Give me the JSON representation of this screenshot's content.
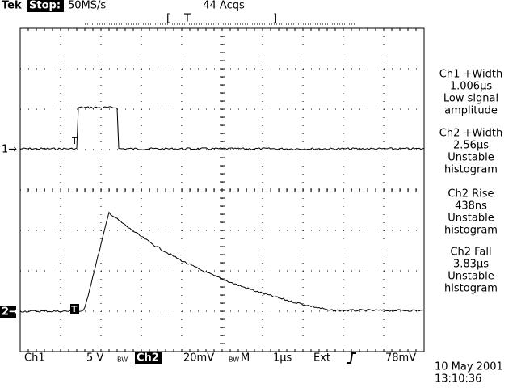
{
  "header": {
    "brand": "Tek",
    "state": "Stop:",
    "sample_rate": "50MS/s",
    "acquisitions": "44 Acqs",
    "trigger_position": "T"
  },
  "channel_markers": [
    "1→",
    "2→"
  ],
  "trace_markers": [
    "T",
    "T"
  ],
  "measurements": [
    {
      "lines": [
        "Ch1 +Width",
        "1.006µs",
        "Low signal",
        "amplitude"
      ]
    },
    {
      "lines": [
        "Ch2 +Width",
        "2.56µs",
        "Unstable",
        "histogram"
      ]
    },
    {
      "lines": [
        "Ch2 Rise",
        "438ns",
        "Unstable",
        "histogram"
      ]
    },
    {
      "lines": [
        "Ch2 Fall",
        "3.83µs",
        "Unstable",
        "histogram"
      ]
    }
  ],
  "footer": {
    "ch1": "Ch1",
    "ch1_scale": "5 V",
    "bw1": "BW",
    "ch2": "Ch2",
    "ch2_scale": "20mV",
    "bw2": "BW",
    "timebase_label": "M",
    "timebase": "1µs",
    "trigger_source": "Ext",
    "trigger_level": "78mV",
    "date": "10 May 2001",
    "time": "13:10:36"
  }
}
